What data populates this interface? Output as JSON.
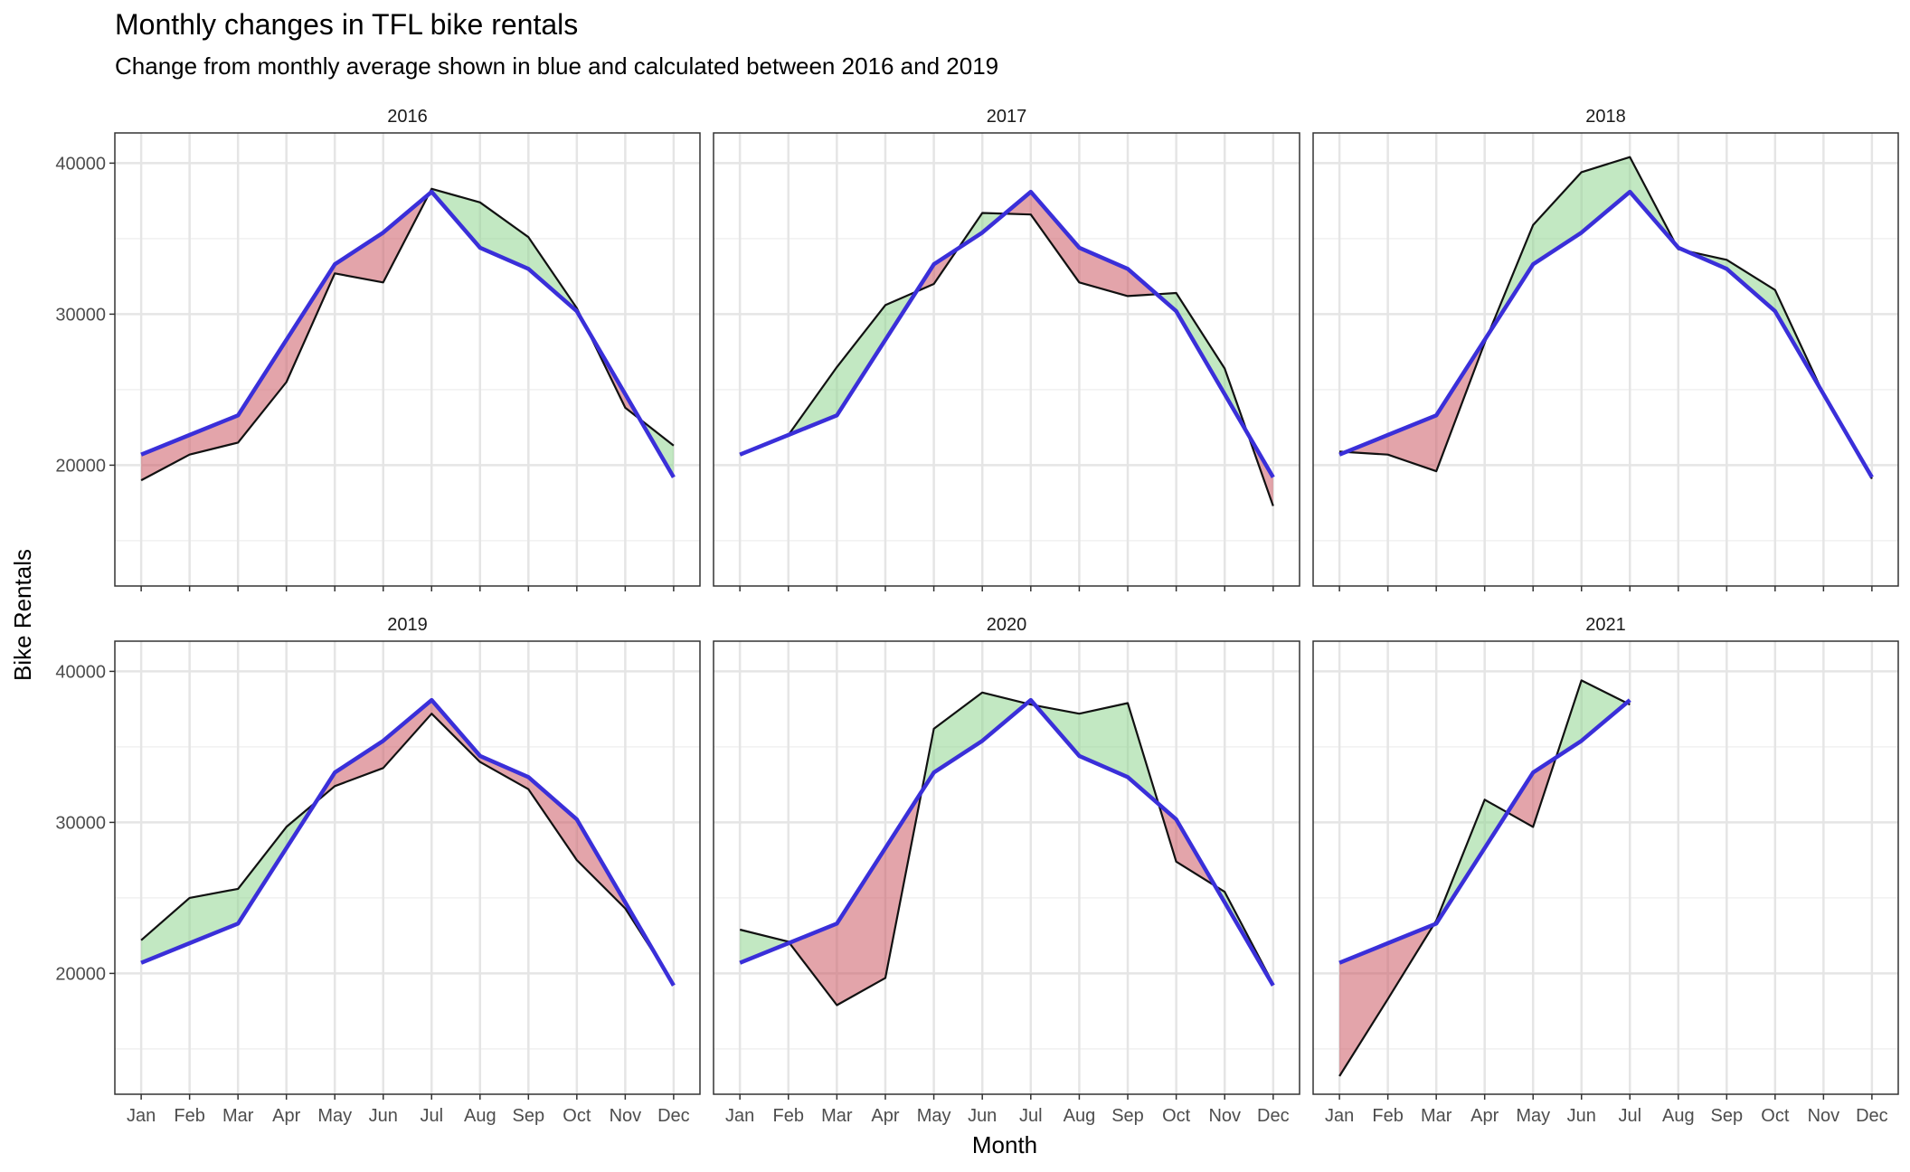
{
  "chart_data": {
    "type": "line",
    "title": "Monthly changes in TFL bike rentals",
    "subtitle": "Change from monthly average shown in blue and calculated between 2016 and 2019",
    "xlabel": "Month",
    "ylabel": "Bike Rentals",
    "months": [
      "Jan",
      "Feb",
      "Mar",
      "Apr",
      "May",
      "Jun",
      "Jul",
      "Aug",
      "Sep",
      "Oct",
      "Nov",
      "Dec"
    ],
    "y_ticks": [
      20000,
      30000,
      40000
    ],
    "ylim": [
      12000,
      42000
    ],
    "grid": true,
    "colors": {
      "expected_line": "#3a2fd9",
      "actual_line": "#111111",
      "above_fill": "#8fd68f",
      "below_fill": "#cc5a64",
      "panel_border": "#333333",
      "grid_major": "#e5e5e5",
      "grid_minor": "#f1f1f1"
    },
    "expected": [
      20700,
      22000,
      23300,
      28300,
      33300,
      35400,
      38100,
      34400,
      33000,
      30200,
      24700,
      19200
    ],
    "panels": [
      {
        "year": "2016",
        "actual": [
          19000,
          20700,
          21500,
          25500,
          32700,
          32100,
          38300,
          37400,
          35100,
          30400,
          23800,
          21300
        ]
      },
      {
        "year": "2017",
        "actual": [
          20700,
          22000,
          26500,
          30600,
          32000,
          36700,
          36600,
          32100,
          31200,
          31400,
          26400,
          17300
        ]
      },
      {
        "year": "2018",
        "actual": [
          20900,
          20700,
          19600,
          28100,
          35900,
          39400,
          40400,
          34300,
          33600,
          31600,
          24700,
          19100
        ]
      },
      {
        "year": "2019",
        "actual": [
          22200,
          25000,
          25600,
          29700,
          32400,
          33600,
          37200,
          34000,
          32200,
          27500,
          24300,
          19300
        ]
      },
      {
        "year": "2020",
        "actual": [
          22900,
          22100,
          17900,
          19700,
          36200,
          38600,
          37800,
          37200,
          37900,
          27400,
          25400,
          19300
        ]
      },
      {
        "year": "2021",
        "actual": [
          13200,
          18300,
          23500,
          31500,
          29700,
          39400,
          37800
        ]
      }
    ]
  }
}
